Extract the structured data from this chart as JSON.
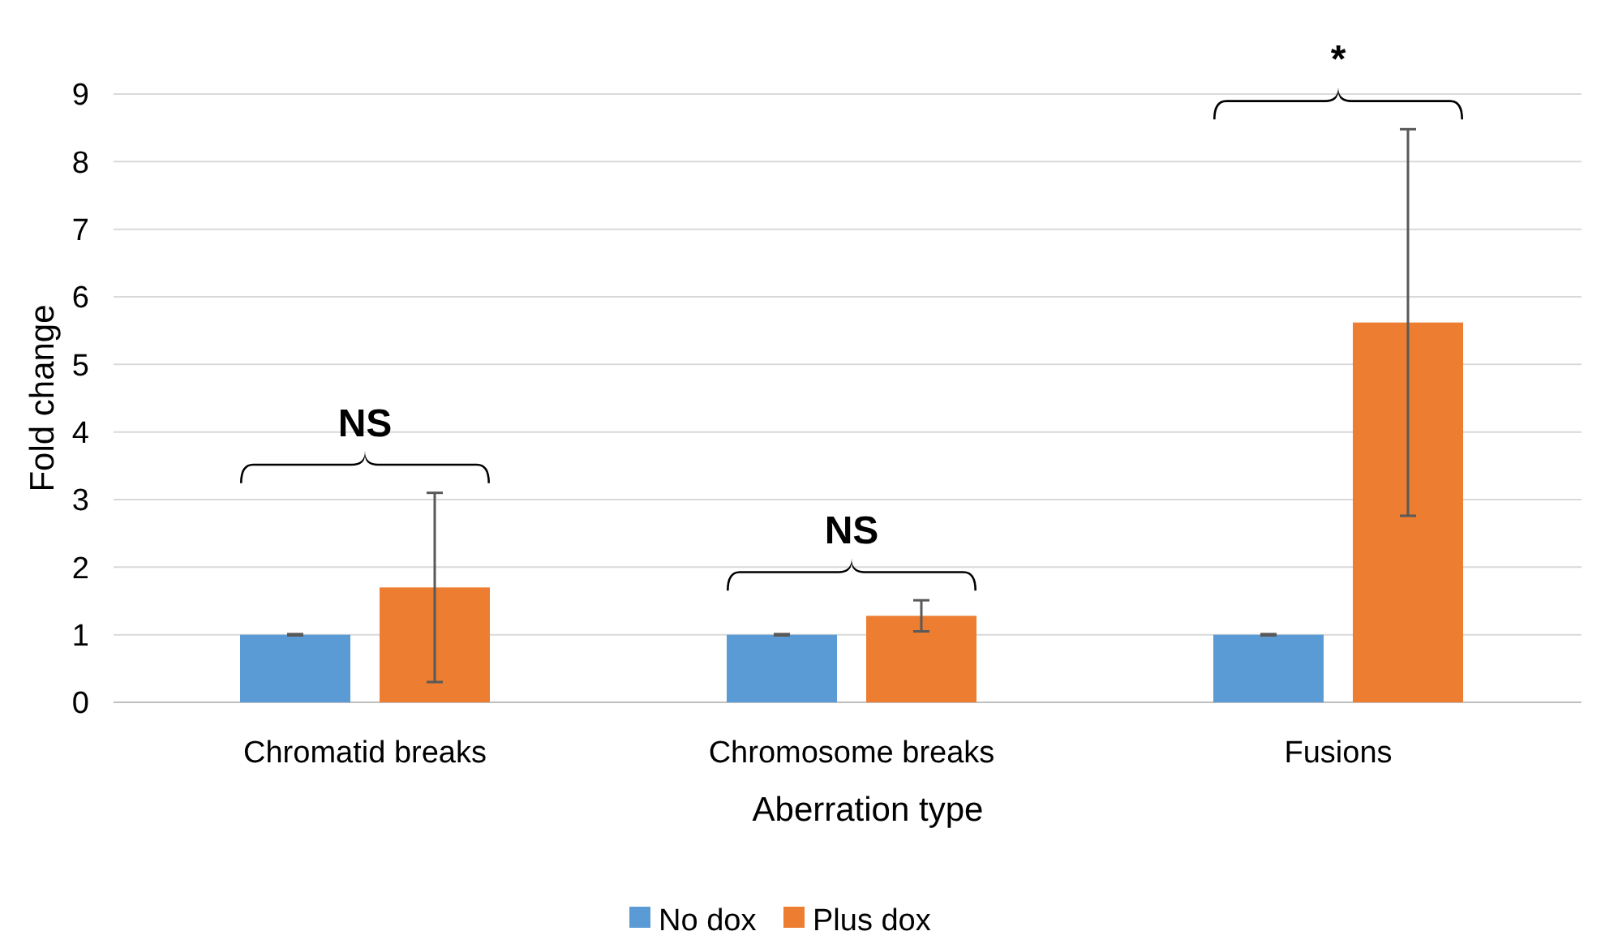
{
  "chart_data": {
    "type": "bar",
    "xlabel": "Aberration type",
    "ylabel": "Fold change",
    "categories": [
      "Chromatid breaks",
      "Chromosome breaks",
      "Fusions"
    ],
    "series": [
      {
        "name": "No dox",
        "color": "#5b9bd5",
        "values": [
          1,
          1,
          1
        ],
        "errors": [
          0.01,
          0.01,
          0.01
        ]
      },
      {
        "name": "Plus dox",
        "color": "#ed7d31",
        "values": [
          1.7,
          1.28,
          5.62
        ],
        "errors": [
          1.4,
          0.23,
          2.86
        ]
      }
    ],
    "ylim": [
      0,
      9
    ],
    "yticks": [
      0,
      1,
      2,
      3,
      4,
      5,
      6,
      7,
      8,
      9
    ],
    "grid": "y",
    "legend": "bottom",
    "annotations": [
      "NS",
      "NS",
      "*"
    ]
  }
}
